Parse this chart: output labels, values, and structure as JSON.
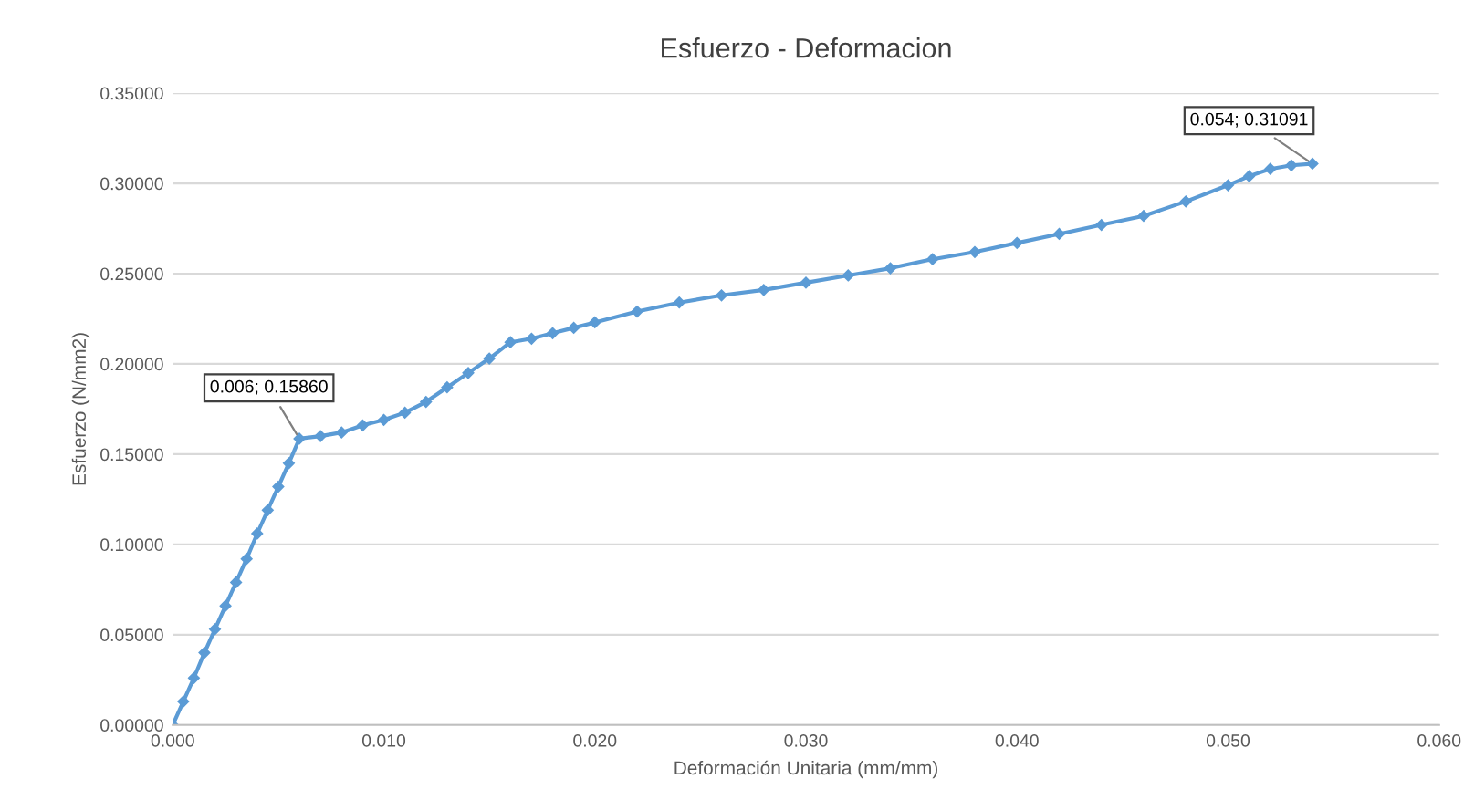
{
  "chart_data": {
    "type": "line",
    "title": "Esfuerzo - Deformacion",
    "xlabel": "Deformación Unitaria (mm/mm)",
    "ylabel": "Esfuerzo (N/mm2)",
    "x": [
      0,
      0.0005,
      0.001,
      0.0015,
      0.002,
      0.0025,
      0.003,
      0.0035,
      0.004,
      0.0045,
      0.005,
      0.0055,
      0.006,
      0.007,
      0.008,
      0.009,
      0.01,
      0.011,
      0.012,
      0.013,
      0.014,
      0.015,
      0.016,
      0.017,
      0.018,
      0.019,
      0.02,
      0.022,
      0.024,
      0.026,
      0.028,
      0.03,
      0.032,
      0.034,
      0.036,
      0.038,
      0.04,
      0.042,
      0.044,
      0.046,
      0.048,
      0.05,
      0.051,
      0.052,
      0.053,
      0.054
    ],
    "series": [
      {
        "color": "#5b9bd5",
        "values": [
          0,
          0.013,
          0.026,
          0.04,
          0.053,
          0.066,
          0.079,
          0.092,
          0.106,
          0.119,
          0.132,
          0.145,
          0.1586,
          0.16,
          0.162,
          0.166,
          0.169,
          0.173,
          0.179,
          0.187,
          0.195,
          0.203,
          0.212,
          0.214,
          0.217,
          0.22,
          0.223,
          0.229,
          0.234,
          0.238,
          0.241,
          0.245,
          0.249,
          0.253,
          0.258,
          0.262,
          0.267,
          0.272,
          0.277,
          0.282,
          0.29,
          0.299,
          0.304,
          0.308,
          0.31,
          0.31091
        ]
      }
    ],
    "xlim": [
      0,
      0.06
    ],
    "xticks": [
      {
        "value": 0,
        "label": "0.000"
      },
      {
        "value": 0.01,
        "label": "0.010"
      },
      {
        "value": 0.02,
        "label": "0.020"
      },
      {
        "value": 0.03,
        "label": "0.030"
      },
      {
        "value": 0.04,
        "label": "0.040"
      },
      {
        "value": 0.05,
        "label": "0.050"
      },
      {
        "value": 0.06,
        "label": "0.060"
      }
    ],
    "ylim": [
      0,
      0.35
    ],
    "yticks": [
      {
        "value": 0,
        "label": "0.00000"
      },
      {
        "value": 0.05,
        "label": "0.05000"
      },
      {
        "value": 0.1,
        "label": "0.10000"
      },
      {
        "value": 0.15,
        "label": "0.15000"
      },
      {
        "value": 0.2,
        "label": "0.20000"
      },
      {
        "value": 0.25,
        "label": "0.25000"
      },
      {
        "value": 0.3,
        "label": "0.30000"
      },
      {
        "value": 0.35,
        "label": "0.35000"
      }
    ],
    "grid": "y",
    "marker": "diamond",
    "line_style": "solid",
    "annotations": [
      {
        "text": "0.006; 0.15860",
        "x": 0.006,
        "y": 0.1586
      },
      {
        "text": "0.054; 0.31091",
        "x": 0.054,
        "y": 0.31091
      }
    ]
  }
}
